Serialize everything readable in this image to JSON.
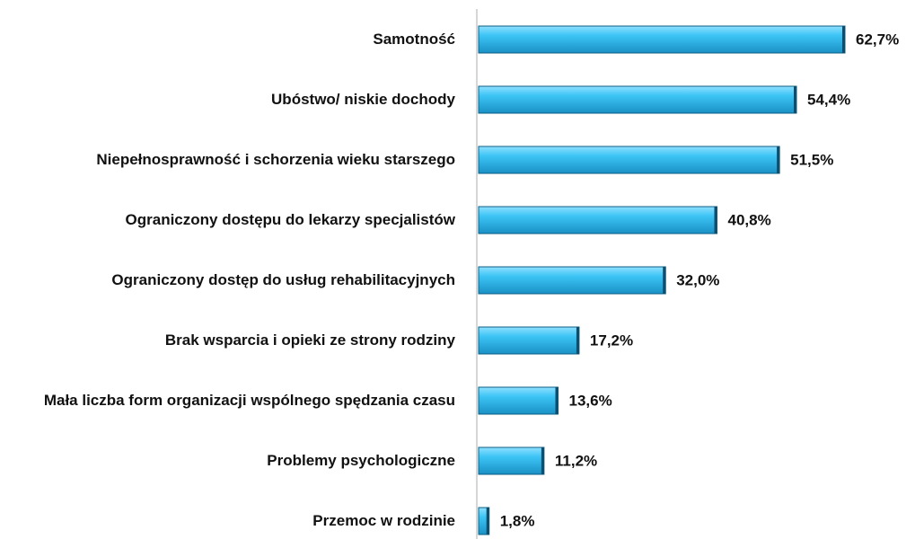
{
  "chart_data": {
    "type": "bar",
    "orientation": "horizontal",
    "categories": [
      "Samotność",
      "Ubóstwo/ niskie dochody",
      "Niepełnosprawność i schorzenia wieku starszego",
      "Ograniczony dostępu do lekarzy specjalistów",
      "Ograniczony dostęp do usług rehabilitacyjnych",
      "Brak wsparcia i opieki ze strony rodziny",
      "Mała liczba form organizacji wspólnego spędzania czasu",
      "Problemy psychologiczne",
      "Przemoc w rodzinie"
    ],
    "values": [
      62.7,
      54.4,
      51.5,
      40.8,
      32.0,
      17.2,
      13.6,
      11.2,
      1.8
    ],
    "value_labels": [
      "62,7%",
      "54,4%",
      "51,5%",
      "40,8%",
      "32,0%",
      "17,2%",
      "13,6%",
      "11,2%",
      "1,8%"
    ],
    "color": "#29b8ec"
  }
}
